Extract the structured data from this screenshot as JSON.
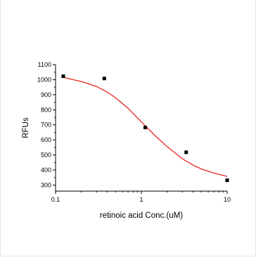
{
  "chart_data": {
    "type": "scatter",
    "title": "",
    "xlabel": "retinoic acid Conc.(uM)",
    "ylabel": "RFUs",
    "x_scale": "log",
    "xlim": [
      0.1,
      10
    ],
    "ylim": [
      260,
      1100
    ],
    "x_ticks": [
      0.1,
      1,
      10
    ],
    "x_tick_labels": [
      "0.1",
      "1",
      "10"
    ],
    "y_ticks": [
      300,
      400,
      500,
      600,
      700,
      800,
      900,
      1000,
      1100
    ],
    "y_tick_labels": [
      "300",
      "400",
      "500",
      "600",
      "700",
      "800",
      "900",
      "1000",
      "1100"
    ],
    "grid": false,
    "legend": "none",
    "series": [
      {
        "marker": "square",
        "color": "#000000",
        "x": [
          0.123,
          0.37,
          1.11,
          3.33,
          10
        ],
        "y": [
          1023,
          1008,
          683,
          518,
          332
        ]
      }
    ],
    "fit_curve": {
      "color": "#e8231f",
      "x": [
        0.12,
        0.16,
        0.2,
        0.3,
        0.4,
        0.5,
        0.7,
        1,
        1.5,
        2,
        3,
        4,
        5,
        7,
        10
      ],
      "y": [
        1018,
        1000,
        988,
        955,
        918,
        880,
        810,
        720,
        620,
        555,
        475,
        433,
        407,
        380,
        358
      ]
    }
  }
}
